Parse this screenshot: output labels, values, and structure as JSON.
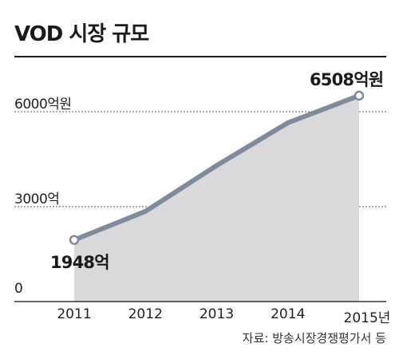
{
  "title": "VOD 시장 규모",
  "source": "자료: 방송시장경쟁평가서 등",
  "chart_data": {
    "type": "area",
    "title": "VOD 시장 규모",
    "categories": [
      "2011",
      "2012",
      "2013",
      "2014",
      "2015년"
    ],
    "series": [
      {
        "values": [
          1948,
          2850,
          4300,
          5650,
          6508
        ]
      }
    ],
    "ylim": [
      0,
      6508
    ],
    "yticks": [
      {
        "value": 0,
        "label": "0"
      },
      {
        "value": 3000,
        "label": "3000억"
      },
      {
        "value": 6000,
        "label": "6000억원"
      }
    ],
    "annotations": [
      {
        "category": "2011",
        "value": 1948,
        "text": "1948억"
      },
      {
        "category": "2015년",
        "value": 6508,
        "text": "6508억원"
      }
    ],
    "grid": true,
    "colors": {
      "line": "#7e8b9a",
      "fill": "#d9d9dc",
      "marker_fill": "#ffffff",
      "grid": "#555555"
    }
  }
}
